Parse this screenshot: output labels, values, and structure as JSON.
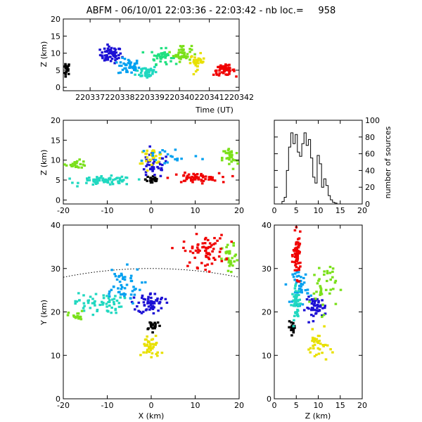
{
  "title": "ABFM - 06/10/01 22:03:36 - 22:03:42 - nb loc.=     958",
  "chart_data": [
    {
      "panel": "time-height",
      "type": "scatter",
      "xlabel": "Time (UT)",
      "ylabel": "Z (km)",
      "xlim": [
        220336.1,
        220342
      ],
      "ylim": [
        -1,
        20
      ],
      "xticks": [
        "220337",
        "220338",
        "220339",
        "220340",
        "220341",
        "220342"
      ],
      "yticks": [
        "0",
        "5",
        "10",
        "15",
        "20"
      ],
      "clusters": [
        {
          "t": 220336.2,
          "z": 5.5,
          "st": 0.12,
          "sz": 1.5,
          "n": 22,
          "color": "#000000"
        },
        {
          "t": 220337.7,
          "z": 9.5,
          "st": 0.3,
          "sz": 2.0,
          "n": 60,
          "color": "#1c10d4"
        },
        {
          "t": 220338.3,
          "z": 6.0,
          "st": 0.3,
          "sz": 2.0,
          "n": 45,
          "color": "#00a0f0"
        },
        {
          "t": 220338.9,
          "z": 4.5,
          "st": 0.3,
          "sz": 1.6,
          "n": 45,
          "color": "#20d8c0"
        },
        {
          "t": 220339.4,
          "z": 9.0,
          "st": 0.3,
          "sz": 1.8,
          "n": 40,
          "color": "#20e080"
        },
        {
          "t": 220340.1,
          "z": 10.0,
          "st": 0.25,
          "sz": 2.0,
          "n": 45,
          "color": "#7ae01a"
        },
        {
          "t": 220340.6,
          "z": 7.5,
          "st": 0.2,
          "sz": 1.8,
          "n": 30,
          "color": "#e8e000"
        },
        {
          "t": 220341.5,
          "z": 5.0,
          "st": 0.3,
          "sz": 1.2,
          "n": 50,
          "color": "#f00000"
        }
      ]
    },
    {
      "panel": "x-height",
      "type": "scatter",
      "xlabel": "",
      "ylabel": "Z (km)",
      "xlim": [
        -20,
        20
      ],
      "ylim": [
        -1,
        20
      ],
      "xticks": [
        "-20",
        "-10",
        "0",
        "10",
        "20"
      ],
      "yticks": [
        "0",
        "5",
        "10",
        "15",
        "20"
      ],
      "clusters": [
        {
          "x": 0.3,
          "z": 5.2,
          "sx": 1.3,
          "sz": 1.2,
          "n": 25,
          "color": "#000000"
        },
        {
          "x": 0.5,
          "z": 8.5,
          "sx": 3.0,
          "sz": 2.5,
          "n": 40,
          "color": "#1c10d4"
        },
        {
          "x": -10,
          "z": 4.8,
          "sx": 5.0,
          "sz": 0.9,
          "n": 70,
          "color": "#20d8c0"
        },
        {
          "x": -17,
          "z": 9.0,
          "sx": 2.0,
          "sz": 0.8,
          "n": 25,
          "color": "#7ae01a"
        },
        {
          "x": 0,
          "z": 11.0,
          "sx": 2.5,
          "sz": 1.5,
          "n": 30,
          "color": "#e8e000"
        },
        {
          "x": 10,
          "z": 5.5,
          "sx": 4.5,
          "sz": 1.0,
          "n": 60,
          "color": "#f00000"
        },
        {
          "x": 18,
          "z": 10.5,
          "sx": 1.5,
          "sz": 2.5,
          "n": 35,
          "color": "#7ae01a"
        },
        {
          "x": 4,
          "z": 11,
          "sx": 6,
          "sz": 2.0,
          "n": 20,
          "color": "#00a0f0"
        }
      ]
    },
    {
      "panel": "height-histogram",
      "type": "line",
      "xlabel": "",
      "ylabel": "number of sources",
      "xlim": [
        0,
        20
      ],
      "ylim": [
        0,
        100
      ],
      "xticks": [
        "0",
        "5",
        "10",
        "15",
        "20"
      ],
      "yticks": [
        "0",
        "20",
        "40",
        "60",
        "80",
        "100"
      ],
      "x": [
        2,
        2.5,
        3,
        3.5,
        4,
        4.5,
        5,
        5.5,
        6,
        6.5,
        7,
        7.5,
        8,
        8.5,
        9,
        9.5,
        10,
        10.5,
        11,
        11.5,
        12,
        12.5,
        13,
        13.5,
        14
      ],
      "y": [
        3,
        8,
        40,
        68,
        85,
        72,
        83,
        62,
        57,
        72,
        85,
        70,
        77,
        55,
        32,
        25,
        58,
        48,
        20,
        30,
        22,
        10,
        5,
        2,
        1
      ]
    },
    {
      "panel": "plan-view",
      "type": "scatter",
      "xlabel": "X (km)",
      "ylabel": "Y (km)",
      "xlim": [
        -20,
        20
      ],
      "ylim": [
        0,
        40
      ],
      "xticks": [
        "-20",
        "-10",
        "0",
        "10",
        "20"
      ],
      "yticks": [
        "0",
        "10",
        "20",
        "30",
        "40"
      ],
      "range_arc_center": [
        0,
        -70
      ],
      "range_arc_radius_km": 100,
      "clusters": [
        {
          "x": 0.5,
          "y": 17,
          "sx": 1.5,
          "sy": 1.0,
          "n": 20,
          "color": "#000000"
        },
        {
          "x": 0,
          "y": 22,
          "sx": 2.5,
          "sy": 2.0,
          "n": 60,
          "color": "#1c10d4"
        },
        {
          "x": -7,
          "y": 26,
          "sx": 4.0,
          "sy": 3.5,
          "n": 50,
          "color": "#00a0f0"
        },
        {
          "x": -12,
          "y": 22,
          "sx": 4.5,
          "sy": 2.0,
          "n": 60,
          "color": "#20d8c0"
        },
        {
          "x": -17,
          "y": 19,
          "sx": 1.5,
          "sy": 1.0,
          "n": 20,
          "color": "#7ae01a"
        },
        {
          "x": 18,
          "y": 32,
          "sx": 1.5,
          "sy": 3.0,
          "n": 30,
          "color": "#7ae01a"
        },
        {
          "x": 0,
          "y": 12,
          "sx": 1.8,
          "sy": 2.5,
          "n": 40,
          "color": "#e8e000"
        },
        {
          "x": 12,
          "y": 34,
          "sx": 4.0,
          "sy": 3.0,
          "n": 70,
          "color": "#f00000"
        }
      ]
    },
    {
      "panel": "z-y-view",
      "type": "scatter",
      "xlabel": "Z (km)",
      "ylabel": "",
      "xlim": [
        0,
        20
      ],
      "ylim": [
        0,
        40
      ],
      "xticks": [
        "0",
        "5",
        "10",
        "15",
        "20"
      ],
      "yticks": [
        "0",
        "10",
        "20",
        "30",
        "40"
      ],
      "clusters": [
        {
          "z": 4.2,
          "y": 16.5,
          "sz": 0.8,
          "sy": 1.0,
          "n": 20,
          "color": "#000000"
        },
        {
          "z": 9.5,
          "y": 21,
          "sz": 2.0,
          "sy": 2.0,
          "n": 50,
          "color": "#1c10d4"
        },
        {
          "z": 6,
          "y": 26,
          "sz": 1.5,
          "sy": 3.5,
          "n": 40,
          "color": "#00a0f0"
        },
        {
          "z": 5,
          "y": 22,
          "sz": 0.8,
          "sy": 3.0,
          "n": 50,
          "color": "#20d8c0"
        },
        {
          "z": 11,
          "y": 26,
          "sz": 2.5,
          "sy": 5.0,
          "n": 40,
          "color": "#7ae01a"
        },
        {
          "z": 10,
          "y": 12,
          "sz": 2.0,
          "sy": 3.0,
          "n": 35,
          "color": "#e8e000"
        },
        {
          "z": 5.2,
          "y": 33,
          "sz": 0.7,
          "sy": 4.0,
          "n": 70,
          "color": "#f00000"
        }
      ]
    }
  ]
}
